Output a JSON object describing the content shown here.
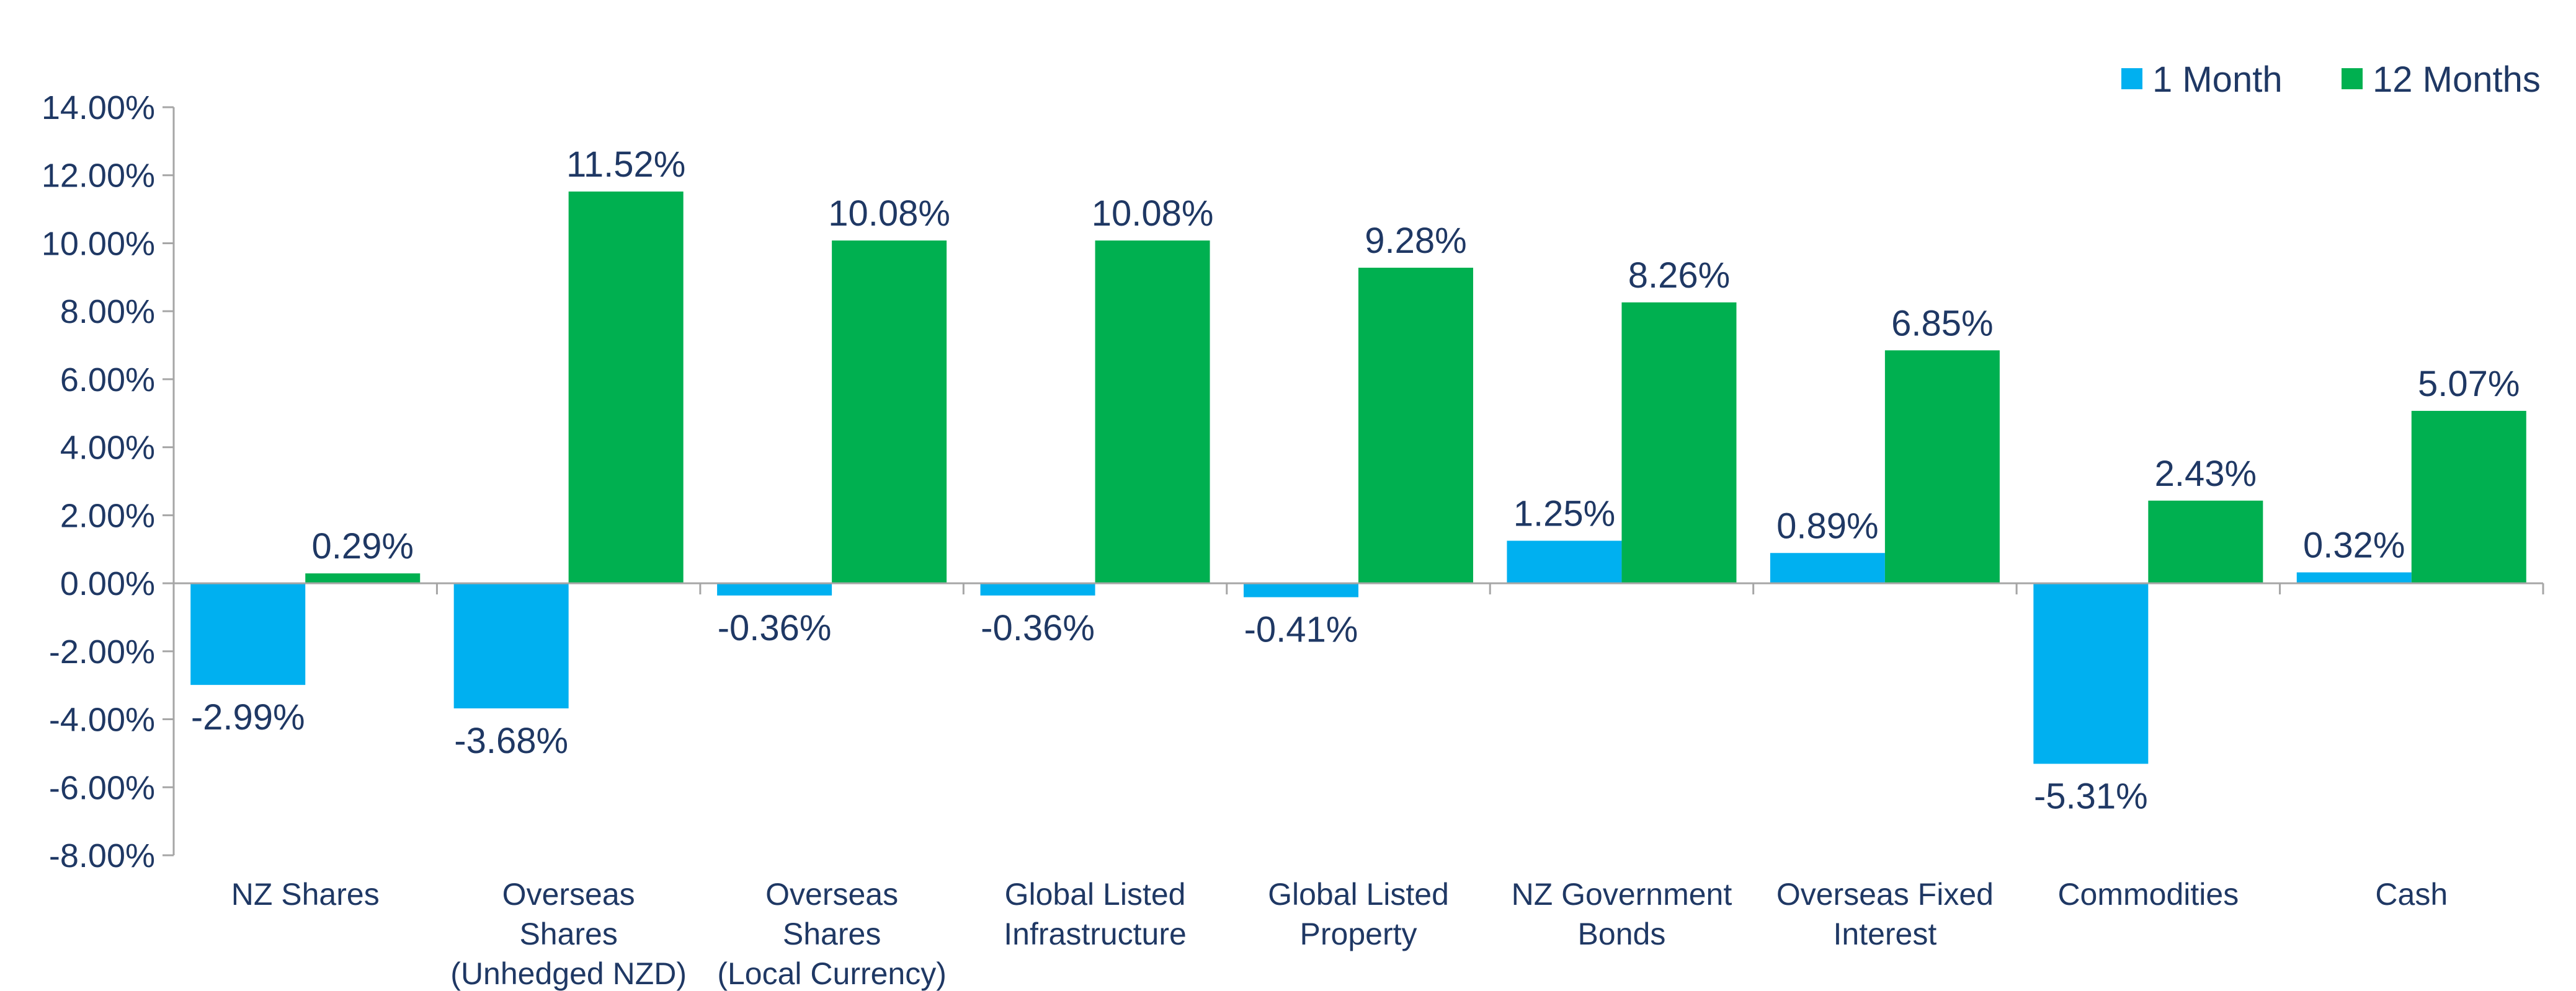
{
  "chart_data": {
    "type": "bar",
    "categories": [
      [
        "NZ Shares"
      ],
      [
        "Overseas",
        "Shares",
        "(Unhedged NZD)"
      ],
      [
        "Overseas",
        "Shares",
        "(Local Currency)"
      ],
      [
        "Global Listed",
        "Infrastructure"
      ],
      [
        "Global Listed",
        "Property"
      ],
      [
        "NZ Government",
        "Bonds"
      ],
      [
        "Overseas Fixed",
        "Interest"
      ],
      [
        "Commodities"
      ],
      [
        "Cash"
      ]
    ],
    "series": [
      {
        "name": "1 Month",
        "color": "#00b0f0",
        "values": [
          -2.99,
          -3.68,
          -0.36,
          -0.36,
          -0.41,
          1.25,
          0.89,
          -5.31,
          0.32
        ],
        "labels": [
          "-2.99%",
          "-3.68%",
          "-0.36%",
          "-0.36%",
          "-0.41%",
          "1.25%",
          "0.89%",
          "-5.31%",
          "0.32%"
        ]
      },
      {
        "name": "12 Months",
        "color": "#00b050",
        "values": [
          0.29,
          11.52,
          10.08,
          10.08,
          9.28,
          8.26,
          6.85,
          2.43,
          5.07
        ],
        "labels": [
          "0.29%",
          "11.52%",
          "10.08%",
          "10.08%",
          "9.28%",
          "8.26%",
          "6.85%",
          "2.43%",
          "5.07%"
        ]
      }
    ],
    "ylim": [
      -8,
      14
    ],
    "yticks": [
      {
        "value": 14,
        "label": "14.00%"
      },
      {
        "value": 12,
        "label": "12.00%"
      },
      {
        "value": 10,
        "label": "10.00%"
      },
      {
        "value": 8,
        "label": "8.00%"
      },
      {
        "value": 6,
        "label": "6.00%"
      },
      {
        "value": 4,
        "label": "4.00%"
      },
      {
        "value": 2,
        "label": "2.00%"
      },
      {
        "value": 0,
        "label": "0.00%"
      },
      {
        "value": -2,
        "label": "-2.00%"
      },
      {
        "value": -4,
        "label": "-4.00%"
      },
      {
        "value": -6,
        "label": "-6.00%"
      },
      {
        "value": -8,
        "label": "-8.00%"
      }
    ],
    "legend_position": "top-right",
    "grid": false,
    "axis_color": "#a6a6a6",
    "text_color": "#1f3864"
  }
}
